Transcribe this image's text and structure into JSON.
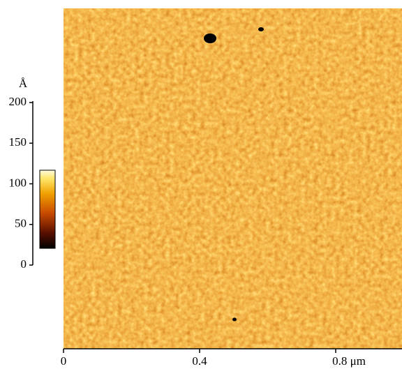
{
  "figure": {
    "z_unit": "Å",
    "z_ticks": [
      "200",
      "150",
      "100",
      "50",
      "0"
    ],
    "x_ticks": [
      "0",
      "0.4",
      "0.8 μm"
    ]
  }
}
